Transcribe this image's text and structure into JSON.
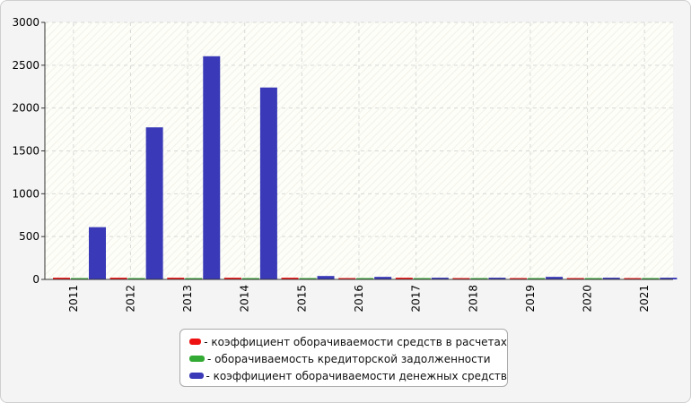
{
  "chart_data": {
    "type": "bar",
    "categories": [
      "2011",
      "2012",
      "2013",
      "2014",
      "2015",
      "2016",
      "2017",
      "2018",
      "2019",
      "2020",
      "2021"
    ],
    "series": [
      {
        "name": "- коэффициент оборачиваемости средств в расчетах",
        "color": "#ee1111",
        "values": [
          20,
          20,
          20,
          20,
          20,
          10,
          20,
          10,
          10,
          10,
          10
        ]
      },
      {
        "name": "- оборачиваемость кредиторской задолженности",
        "color": "#33aa33",
        "values": [
          5,
          5,
          5,
          5,
          5,
          5,
          5,
          5,
          5,
          5,
          5
        ]
      },
      {
        "name": "- коэффициент оборачиваемости денежных средств",
        "color": "#3a3ab8",
        "values": [
          610,
          1775,
          2605,
          2240,
          40,
          30,
          20,
          20,
          30,
          20,
          20
        ]
      }
    ],
    "y_ticks": [
      "0",
      "500",
      "1000",
      "1500",
      "2000",
      "2500",
      "3000"
    ],
    "ylim": [
      0,
      3000
    ],
    "grid": true,
    "legend_position": "bottom"
  }
}
